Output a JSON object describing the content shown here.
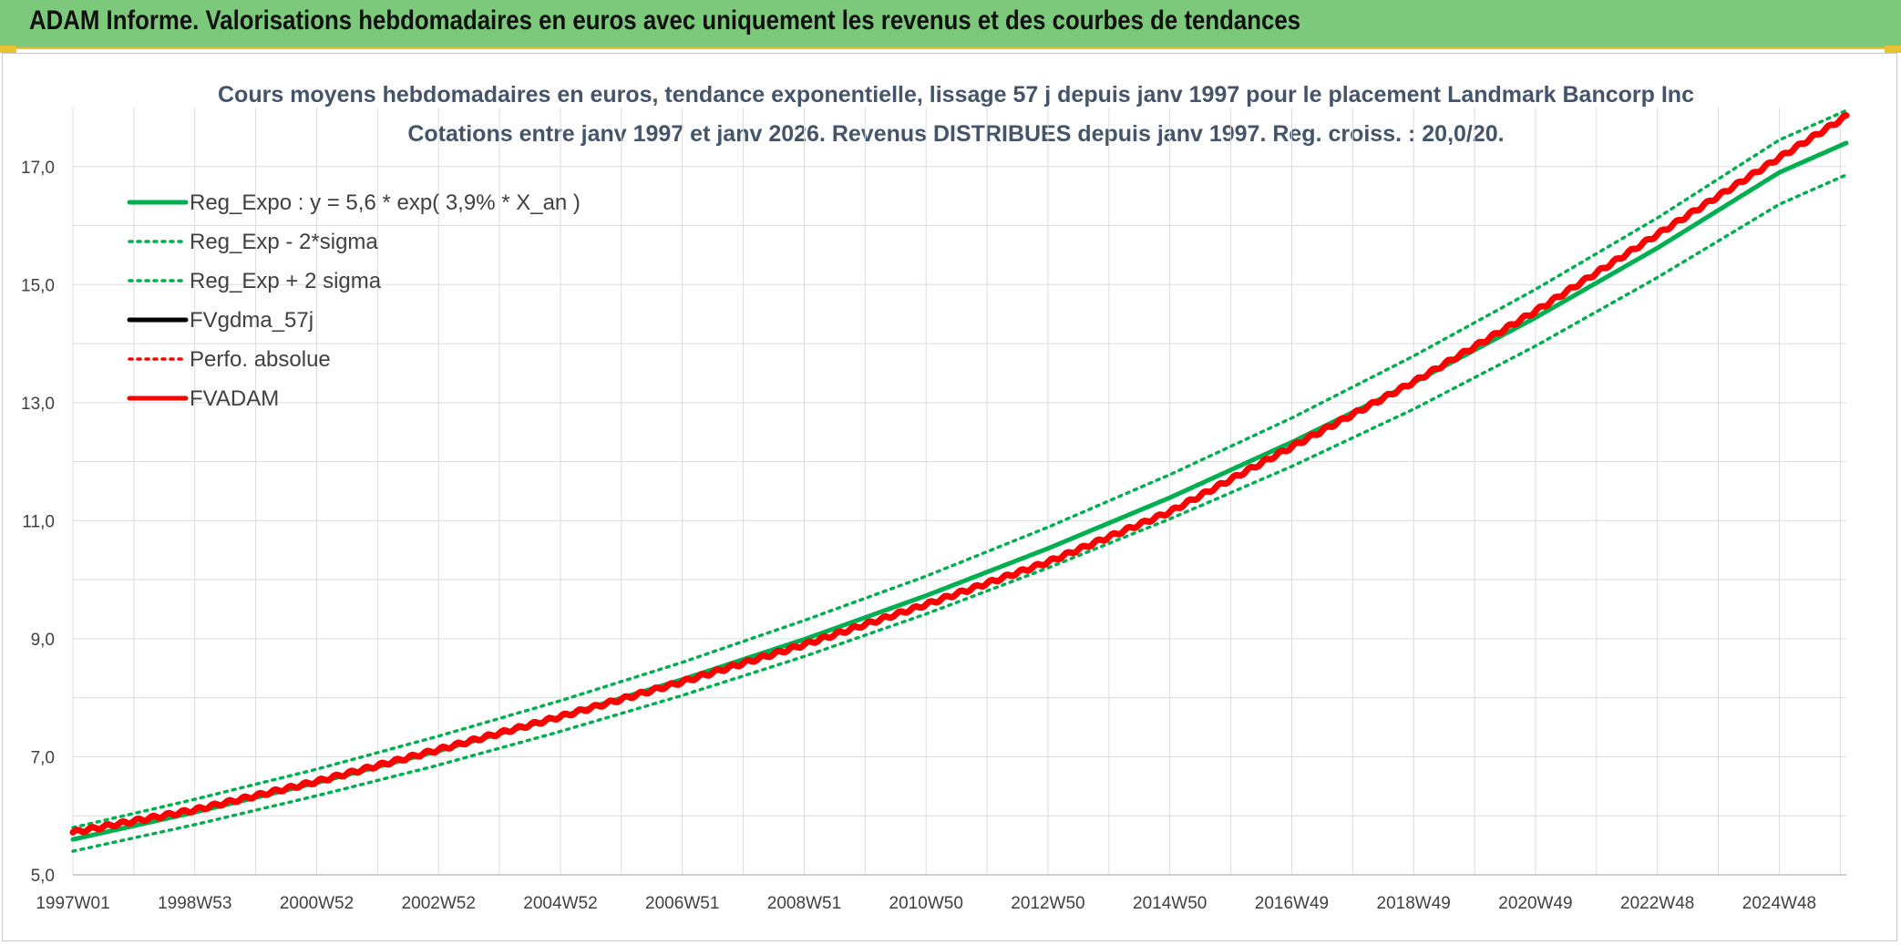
{
  "header": {
    "title": "ADAM Informe. Valorisations hebdomadaires en euros avec uniquement les revenus et des courbes de tendances"
  },
  "colors": {
    "header_bg": "#7dc97b",
    "accent": "#e8c330",
    "green": "#00b050",
    "red": "#ff0000",
    "black": "#000000"
  },
  "chart_data": {
    "type": "line",
    "title": [
      "Cours moyens hebdomadaires en euros, tendance exponentielle, lissage 57 j depuis janv 1997 pour le placement Landmark Bancorp Inc",
      "Cotations entre janv 1997 et janv 2026. Revenus DISTRIBUES depuis janv 1997. Reg. croiss. : 20,0/20."
    ],
    "x_range": [
      1997.0,
      2026.1
    ],
    "x_tick_values": [
      1997.0,
      1999.0,
      2001.0,
      2003.0,
      2005.0,
      2007.0,
      2009.0,
      2011.0,
      2013.0,
      2015.0,
      2017.0,
      2019.0,
      2021.0,
      2023.0,
      2025.0
    ],
    "x_tick_labels": [
      "1997W01",
      "1998W53",
      "2000W52",
      "2002W52",
      "2004W52",
      "2006W51",
      "2008W51",
      "2010W50",
      "2012W50",
      "2014W50",
      "2016W49",
      "2018W49",
      "2020W49",
      "2022W48",
      "2024W48"
    ],
    "ylim": [
      5.0,
      18.0
    ],
    "y_ticks": [
      5.0,
      7.0,
      9.0,
      11.0,
      13.0,
      15.0,
      17.0
    ],
    "y_tick_labels": [
      "5,0",
      "7,0",
      "9,0",
      "11,0",
      "13,0",
      "15,0",
      "17,0"
    ],
    "grid": true,
    "legend_position": "top-left",
    "series": [
      {
        "name": "Reg_Expo : y = 5,6 * exp( 3,9% *  X_an )",
        "style": "solid",
        "color": "#00b050",
        "x": [
          1997,
          1999,
          2001,
          2003,
          2005,
          2007,
          2009,
          2011,
          2013,
          2015,
          2017,
          2019,
          2021,
          2023,
          2025,
          2026.1
        ],
        "y": [
          5.6,
          6.06,
          6.56,
          7.1,
          7.68,
          8.31,
          8.99,
          9.73,
          10.53,
          11.39,
          12.33,
          13.34,
          14.44,
          15.62,
          16.9,
          17.4
        ]
      },
      {
        "name": "Reg_Exp - 2*sigma",
        "style": "dotted",
        "color": "#00b050",
        "x": [
          1997,
          1999,
          2001,
          2003,
          2005,
          2007,
          2009,
          2011,
          2013,
          2015,
          2017,
          2019,
          2021,
          2023,
          2025,
          2026.1
        ],
        "y": [
          5.4,
          5.85,
          6.34,
          6.86,
          7.43,
          8.04,
          8.7,
          9.42,
          10.2,
          11.03,
          11.92,
          12.89,
          13.96,
          15.12,
          16.36,
          16.86
        ]
      },
      {
        "name": "Reg_Exp + 2 sigma",
        "style": "dotted",
        "color": "#00b050",
        "x": [
          1997,
          1999,
          2001,
          2003,
          2005,
          2007,
          2009,
          2011,
          2013,
          2015,
          2017,
          2019,
          2021,
          2023,
          2025,
          2026.1
        ],
        "y": [
          5.8,
          6.28,
          6.79,
          7.35,
          7.95,
          8.6,
          9.31,
          10.06,
          10.89,
          11.78,
          12.74,
          13.79,
          14.92,
          16.13,
          17.45,
          17.95
        ]
      },
      {
        "name": "FVgdma_57j",
        "style": "solid",
        "color": "#000000",
        "x": [
          1997,
          1999,
          2001,
          2003,
          2005,
          2007,
          2009,
          2011,
          2013,
          2015,
          2017,
          2019,
          2021,
          2023,
          2025,
          2026.1
        ],
        "y": [
          5.72,
          6.1,
          6.58,
          7.12,
          7.68,
          8.27,
          8.9,
          9.58,
          10.3,
          11.15,
          12.25,
          13.35,
          14.55,
          15.85,
          17.15,
          17.85
        ]
      },
      {
        "name": "Perfo. absolue",
        "style": "dotted",
        "color": "#ff0000",
        "x": [
          1997,
          1999,
          2001,
          2003,
          2005,
          2007,
          2009,
          2011,
          2013,
          2015,
          2017,
          2019,
          2021,
          2023,
          2025,
          2026.1
        ],
        "y": [
          5.72,
          6.1,
          6.58,
          7.12,
          7.68,
          8.27,
          8.9,
          9.58,
          10.3,
          11.15,
          12.25,
          13.35,
          14.55,
          15.85,
          17.15,
          17.85
        ]
      },
      {
        "name": "FVADAM",
        "style": "solid-thick",
        "color": "#ff0000",
        "x": [
          1997,
          1999,
          2001,
          2003,
          2005,
          2007,
          2009,
          2011,
          2013,
          2015,
          2017,
          2019,
          2021,
          2023,
          2025,
          2026.1
        ],
        "y": [
          5.72,
          6.1,
          6.58,
          7.12,
          7.68,
          8.27,
          8.9,
          9.58,
          10.3,
          11.15,
          12.25,
          13.35,
          14.55,
          15.85,
          17.15,
          17.85
        ]
      }
    ]
  }
}
